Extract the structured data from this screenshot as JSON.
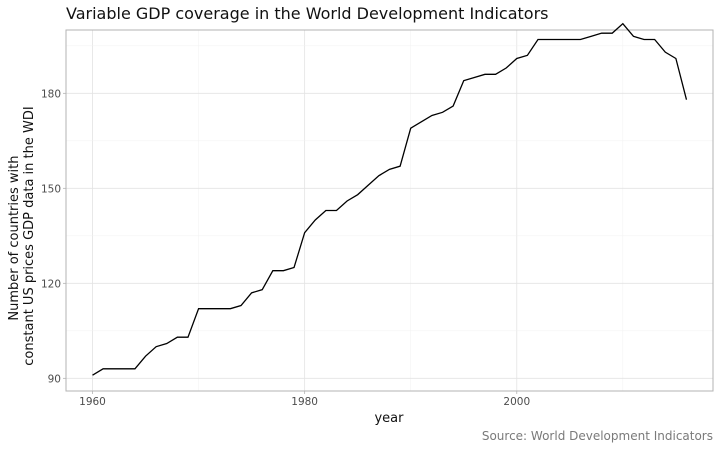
{
  "chart_data": {
    "type": "line",
    "title": "Variable GDP coverage in the World Development Indicators",
    "xlabel": "year",
    "ylabel": [
      "Number of countries with",
      "constant US prices GDP data in the WDI"
    ],
    "caption": "Source: World Development Indicators",
    "xlim": [
      1957.5,
      2018.5
    ],
    "ylim": [
      86,
      200
    ],
    "x_ticks": [
      1960,
      1980,
      2000
    ],
    "y_ticks": [
      90,
      120,
      150,
      180
    ],
    "grid": true,
    "series": [
      {
        "color": "#000000",
        "x": [
          1960,
          1961,
          1962,
          1963,
          1964,
          1965,
          1966,
          1967,
          1968,
          1969,
          1970,
          1971,
          1972,
          1973,
          1974,
          1975,
          1976,
          1977,
          1978,
          1979,
          1980,
          1981,
          1982,
          1983,
          1984,
          1985,
          1986,
          1987,
          1988,
          1989,
          1990,
          1991,
          1992,
          1993,
          1994,
          1995,
          1996,
          1997,
          1998,
          1999,
          2000,
          2001,
          2002,
          2003,
          2004,
          2005,
          2006,
          2007,
          2008,
          2009,
          2010,
          2011,
          2012,
          2013,
          2014,
          2015,
          2016
        ],
        "y": [
          91,
          93,
          93,
          93,
          93,
          97,
          100,
          101,
          103,
          103,
          112,
          112,
          112,
          112,
          113,
          117,
          118,
          124,
          124,
          125,
          136,
          140,
          143,
          143,
          146,
          148,
          151,
          154,
          156,
          157,
          169,
          171,
          173,
          174,
          176,
          184,
          185,
          186,
          186,
          188,
          191,
          192,
          197,
          197,
          197,
          197,
          197,
          198,
          199,
          199,
          202,
          198,
          197,
          197,
          193,
          191,
          178
        ]
      }
    ]
  }
}
